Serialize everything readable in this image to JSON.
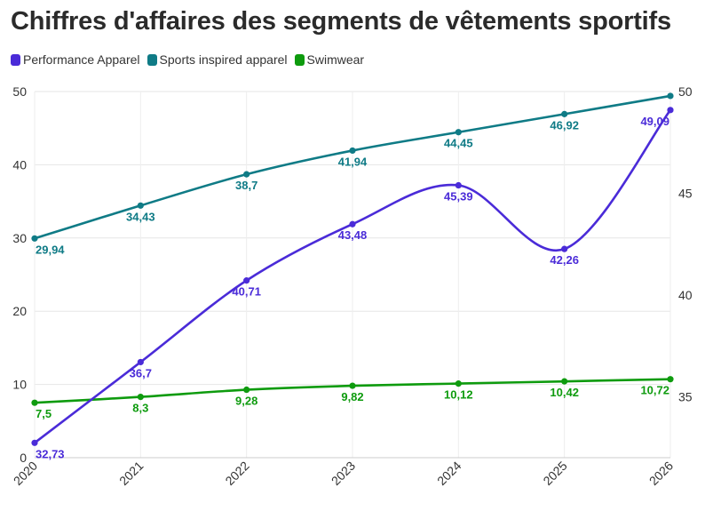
{
  "chart_data": {
    "type": "line",
    "title": "Chiffres d'affaires des segments de vêtements sportifs",
    "x": [
      "2020",
      "2021",
      "2022",
      "2023",
      "2024",
      "2025",
      "2026"
    ],
    "y_left": {
      "ticks": [
        "0",
        "10",
        "20",
        "30",
        "40",
        "50"
      ],
      "range": [
        0,
        50
      ]
    },
    "y_right": {
      "ticks": [
        "35",
        "40",
        "45",
        "50"
      ],
      "range": [
        32,
        50
      ]
    },
    "grid": true,
    "legend_position": "top-left",
    "series": [
      {
        "name": "Performance Apparel",
        "axis": "right",
        "color": "#4a2bd8",
        "values": [
          32.73,
          36.7,
          40.71,
          43.48,
          45.39,
          42.26,
          49.09
        ],
        "labels": [
          "32,73",
          "36,7",
          "40,71",
          "43,48",
          "45,39",
          "42,26",
          "49,09"
        ]
      },
      {
        "name": "Sports inspired apparel",
        "axis": "left",
        "color": "#0f7b86",
        "values": [
          29.94,
          34.43,
          38.7,
          41.94,
          44.45,
          46.92,
          49.4
        ],
        "labels": [
          "29,94",
          "34,43",
          "38,7",
          "41,94",
          "44,45",
          "46,92",
          ""
        ]
      },
      {
        "name": "Swimwear",
        "axis": "left",
        "color": "#0e9b0e",
        "values": [
          7.5,
          8.3,
          9.28,
          9.82,
          10.12,
          10.42,
          10.72
        ],
        "labels": [
          "7,5",
          "8,3",
          "9,28",
          "9,82",
          "10,12",
          "10,42",
          "10,72"
        ]
      }
    ]
  }
}
